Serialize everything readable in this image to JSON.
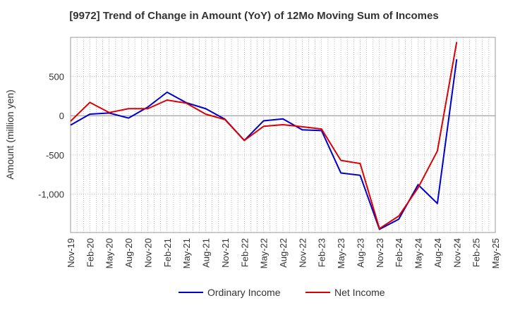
{
  "chart_data": {
    "type": "line",
    "title": "[9972]  Trend of Change in Amount (YoY) of 12Mo Moving Sum of Incomes",
    "ylabel": "Amount (million yen)",
    "xlabel": "",
    "ylim": [
      -1500,
      1000
    ],
    "yticks": [
      500,
      0,
      -500,
      -1000
    ],
    "ytick_labels": [
      "500",
      "0",
      "-500",
      "-1,000"
    ],
    "x_tick_labels": [
      "Nov-19",
      "Feb-20",
      "May-20",
      "Aug-20",
      "Nov-20",
      "Feb-21",
      "May-21",
      "Aug-21",
      "Nov-21",
      "Feb-22",
      "May-22",
      "Aug-22",
      "Nov-22",
      "Feb-23",
      "May-23",
      "Aug-23",
      "Nov-23",
      "Feb-24",
      "May-24",
      "Aug-24",
      "Nov-24",
      "Feb-25",
      "May-25"
    ],
    "grid": true,
    "legend_position": "bottom",
    "series": [
      {
        "name": "Ordinary Income",
        "color": "#0000cc",
        "values": [
          -120,
          20,
          35,
          -30,
          110,
          300,
          165,
          90,
          -45,
          -315,
          -65,
          -40,
          -180,
          -190,
          -730,
          -760,
          -1450,
          -1320,
          -880,
          -1120,
          720
        ]
      },
      {
        "name": "Net Income",
        "color": "#dd0000",
        "values": [
          -70,
          170,
          40,
          90,
          90,
          200,
          160,
          20,
          -50,
          -315,
          -135,
          -115,
          -140,
          -170,
          -570,
          -610,
          -1440,
          -1280,
          -920,
          -450,
          940
        ]
      }
    ]
  }
}
